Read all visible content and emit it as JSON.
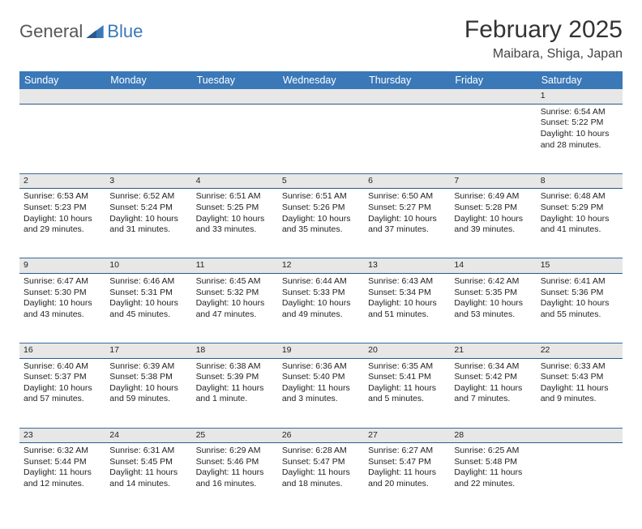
{
  "logo": {
    "text1": "General",
    "text2": "Blue"
  },
  "title": "February 2025",
  "location": "Maibara, Shiga, Japan",
  "colors": {
    "header_bg": "#3a78b8",
    "header_text": "#ffffff",
    "daynum_bg": "#e7e7e7",
    "border": "#3a6a9c",
    "logo_gray": "#565656",
    "logo_blue": "#3a78b8",
    "text": "#222222"
  },
  "weekdays": [
    "Sunday",
    "Monday",
    "Tuesday",
    "Wednesday",
    "Thursday",
    "Friday",
    "Saturday"
  ],
  "weeks": [
    {
      "nums": [
        "",
        "",
        "",
        "",
        "",
        "",
        "1"
      ],
      "cells": [
        null,
        null,
        null,
        null,
        null,
        null,
        {
          "sunrise": "6:54 AM",
          "sunset": "5:22 PM",
          "daylight": "10 hours and 28 minutes."
        }
      ]
    },
    {
      "nums": [
        "2",
        "3",
        "4",
        "5",
        "6",
        "7",
        "8"
      ],
      "cells": [
        {
          "sunrise": "6:53 AM",
          "sunset": "5:23 PM",
          "daylight": "10 hours and 29 minutes."
        },
        {
          "sunrise": "6:52 AM",
          "sunset": "5:24 PM",
          "daylight": "10 hours and 31 minutes."
        },
        {
          "sunrise": "6:51 AM",
          "sunset": "5:25 PM",
          "daylight": "10 hours and 33 minutes."
        },
        {
          "sunrise": "6:51 AM",
          "sunset": "5:26 PM",
          "daylight": "10 hours and 35 minutes."
        },
        {
          "sunrise": "6:50 AM",
          "sunset": "5:27 PM",
          "daylight": "10 hours and 37 minutes."
        },
        {
          "sunrise": "6:49 AM",
          "sunset": "5:28 PM",
          "daylight": "10 hours and 39 minutes."
        },
        {
          "sunrise": "6:48 AM",
          "sunset": "5:29 PM",
          "daylight": "10 hours and 41 minutes."
        }
      ]
    },
    {
      "nums": [
        "9",
        "10",
        "11",
        "12",
        "13",
        "14",
        "15"
      ],
      "cells": [
        {
          "sunrise": "6:47 AM",
          "sunset": "5:30 PM",
          "daylight": "10 hours and 43 minutes."
        },
        {
          "sunrise": "6:46 AM",
          "sunset": "5:31 PM",
          "daylight": "10 hours and 45 minutes."
        },
        {
          "sunrise": "6:45 AM",
          "sunset": "5:32 PM",
          "daylight": "10 hours and 47 minutes."
        },
        {
          "sunrise": "6:44 AM",
          "sunset": "5:33 PM",
          "daylight": "10 hours and 49 minutes."
        },
        {
          "sunrise": "6:43 AM",
          "sunset": "5:34 PM",
          "daylight": "10 hours and 51 minutes."
        },
        {
          "sunrise": "6:42 AM",
          "sunset": "5:35 PM",
          "daylight": "10 hours and 53 minutes."
        },
        {
          "sunrise": "6:41 AM",
          "sunset": "5:36 PM",
          "daylight": "10 hours and 55 minutes."
        }
      ]
    },
    {
      "nums": [
        "16",
        "17",
        "18",
        "19",
        "20",
        "21",
        "22"
      ],
      "cells": [
        {
          "sunrise": "6:40 AM",
          "sunset": "5:37 PM",
          "daylight": "10 hours and 57 minutes."
        },
        {
          "sunrise": "6:39 AM",
          "sunset": "5:38 PM",
          "daylight": "10 hours and 59 minutes."
        },
        {
          "sunrise": "6:38 AM",
          "sunset": "5:39 PM",
          "daylight": "11 hours and 1 minute."
        },
        {
          "sunrise": "6:36 AM",
          "sunset": "5:40 PM",
          "daylight": "11 hours and 3 minutes."
        },
        {
          "sunrise": "6:35 AM",
          "sunset": "5:41 PM",
          "daylight": "11 hours and 5 minutes."
        },
        {
          "sunrise": "6:34 AM",
          "sunset": "5:42 PM",
          "daylight": "11 hours and 7 minutes."
        },
        {
          "sunrise": "6:33 AM",
          "sunset": "5:43 PM",
          "daylight": "11 hours and 9 minutes."
        }
      ]
    },
    {
      "nums": [
        "23",
        "24",
        "25",
        "26",
        "27",
        "28",
        ""
      ],
      "cells": [
        {
          "sunrise": "6:32 AM",
          "sunset": "5:44 PM",
          "daylight": "11 hours and 12 minutes."
        },
        {
          "sunrise": "6:31 AM",
          "sunset": "5:45 PM",
          "daylight": "11 hours and 14 minutes."
        },
        {
          "sunrise": "6:29 AM",
          "sunset": "5:46 PM",
          "daylight": "11 hours and 16 minutes."
        },
        {
          "sunrise": "6:28 AM",
          "sunset": "5:47 PM",
          "daylight": "11 hours and 18 minutes."
        },
        {
          "sunrise": "6:27 AM",
          "sunset": "5:47 PM",
          "daylight": "11 hours and 20 minutes."
        },
        {
          "sunrise": "6:25 AM",
          "sunset": "5:48 PM",
          "daylight": "11 hours and 22 minutes."
        },
        null
      ]
    }
  ],
  "labels": {
    "sunrise": "Sunrise: ",
    "sunset": "Sunset: ",
    "daylight": "Daylight: "
  }
}
